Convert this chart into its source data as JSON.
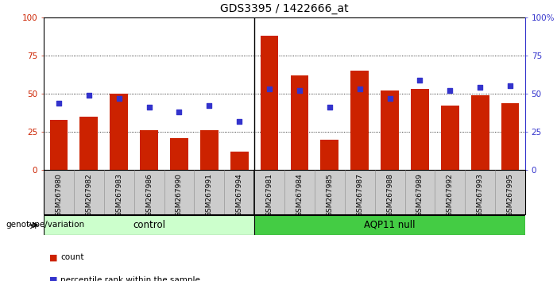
{
  "title": "GDS3395 / 1422666_at",
  "samples": [
    "GSM267980",
    "GSM267982",
    "GSM267983",
    "GSM267986",
    "GSM267990",
    "GSM267991",
    "GSM267994",
    "GSM267981",
    "GSM267984",
    "GSM267985",
    "GSM267987",
    "GSM267988",
    "GSM267989",
    "GSM267992",
    "GSM267993",
    "GSM267995"
  ],
  "counts": [
    33,
    35,
    50,
    26,
    21,
    26,
    12,
    88,
    62,
    20,
    65,
    52,
    53,
    42,
    49,
    44
  ],
  "percentiles": [
    44,
    49,
    47,
    41,
    38,
    42,
    32,
    53,
    52,
    41,
    53,
    47,
    59,
    52,
    54,
    55
  ],
  "group_split": 7,
  "bar_color": "#cc2200",
  "dot_color": "#3333cc",
  "control_bg": "#ccffcc",
  "aqp11_bg": "#44cc44",
  "xlabels_bg": "#cccccc",
  "ylim": [
    0,
    100
  ],
  "yticks": [
    0,
    25,
    50,
    75,
    100
  ],
  "yticklabels_left": [
    "0",
    "25",
    "50",
    "75",
    "100"
  ],
  "yticklabels_right": [
    "0",
    "25",
    "50",
    "75",
    "100%"
  ],
  "legend_count_label": "count",
  "legend_pct_label": "percentile rank within the sample",
  "genotype_label": "genotype/variation"
}
